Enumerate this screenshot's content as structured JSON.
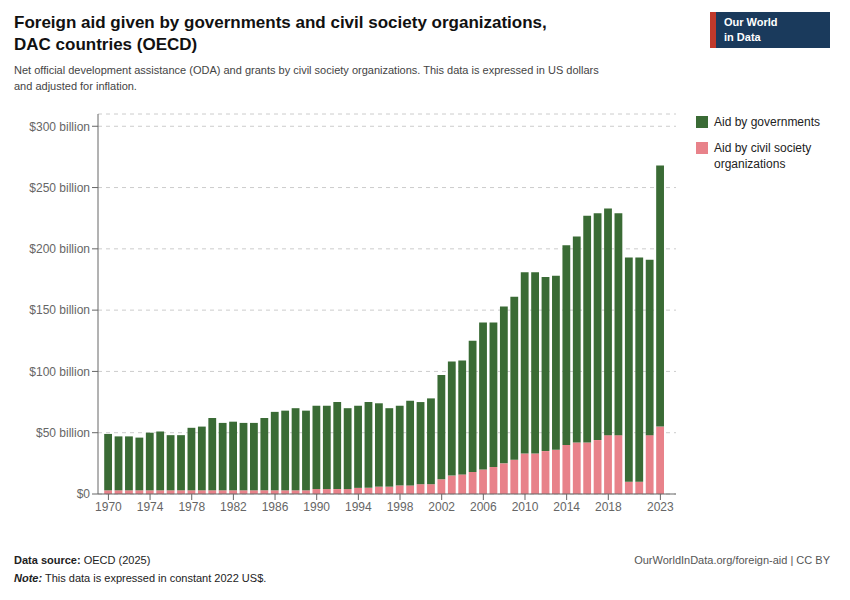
{
  "chart_data": {
    "type": "bar",
    "stacked": true,
    "title": "Foreign aid given by governments and civil society organizations,\nDAC countries (OECD)",
    "subtitle": "Net official development assistance (ODA) and grants by civil society organizations. This data is expressed in US dollars\nand adjusted for inflation.",
    "x": [
      1970,
      1971,
      1972,
      1973,
      1974,
      1975,
      1976,
      1977,
      1978,
      1979,
      1980,
      1981,
      1982,
      1983,
      1984,
      1985,
      1986,
      1987,
      1988,
      1989,
      1990,
      1991,
      1992,
      1993,
      1994,
      1995,
      1996,
      1997,
      1998,
      1999,
      2000,
      2001,
      2002,
      2003,
      2004,
      2005,
      2006,
      2007,
      2008,
      2009,
      2010,
      2011,
      2012,
      2013,
      2014,
      2015,
      2016,
      2017,
      2018,
      2019,
      2020,
      2021,
      2022,
      2023
    ],
    "xlim": [
      1969,
      2024.5
    ],
    "xticks": [
      1970,
      1974,
      1978,
      1982,
      1986,
      1990,
      1994,
      1998,
      2002,
      2006,
      2010,
      2014,
      2018,
      2023
    ],
    "ylim": [
      0,
      310
    ],
    "yticks": [
      {
        "value": 0,
        "label": "$0"
      },
      {
        "value": 50,
        "label": "$50 billion"
      },
      {
        "value": 100,
        "label": "$100 billion"
      },
      {
        "value": 150,
        "label": "$150 billion"
      },
      {
        "value": 200,
        "label": "$200 billion"
      },
      {
        "value": 250,
        "label": "$250 billion"
      },
      {
        "value": 300,
        "label": "$300 billion"
      }
    ],
    "grid": true,
    "legend": "right",
    "series": [
      {
        "name": "Aid by civil society\norganizations",
        "color": "#e8828a",
        "values": [
          3,
          3,
          3,
          3,
          3,
          3,
          3,
          3,
          3,
          3,
          3,
          3,
          3,
          3,
          3,
          3,
          3,
          3,
          3,
          3,
          4,
          4,
          4,
          4,
          5,
          5,
          6,
          6,
          7,
          7,
          8,
          8,
          12,
          15,
          16,
          18,
          20,
          22,
          25,
          28,
          33,
          33,
          35,
          36,
          40,
          42,
          42,
          44,
          48,
          48,
          10,
          10,
          48,
          55
        ]
      },
      {
        "name": "Aid by governments",
        "color": "#3a6b35",
        "values": [
          46,
          44,
          44,
          43,
          47,
          48,
          45,
          45,
          51,
          52,
          59,
          55,
          56,
          55,
          55,
          59,
          64,
          65,
          67,
          65,
          68,
          68,
          71,
          66,
          67,
          70,
          68,
          64,
          65,
          69,
          67,
          70,
          85,
          93,
          93,
          107,
          120,
          118,
          128,
          133,
          148,
          148,
          142,
          142,
          163,
          168,
          185,
          185,
          185,
          181,
          183,
          183,
          143,
          213
        ]
      }
    ],
    "annotations": [
      "Data source: OECD (2025)",
      "Note: This data is expressed in constant 2022 US$.",
      "OurWorldInData.org/foreign-aid | CC BY",
      "Our World\nin Data"
    ]
  }
}
